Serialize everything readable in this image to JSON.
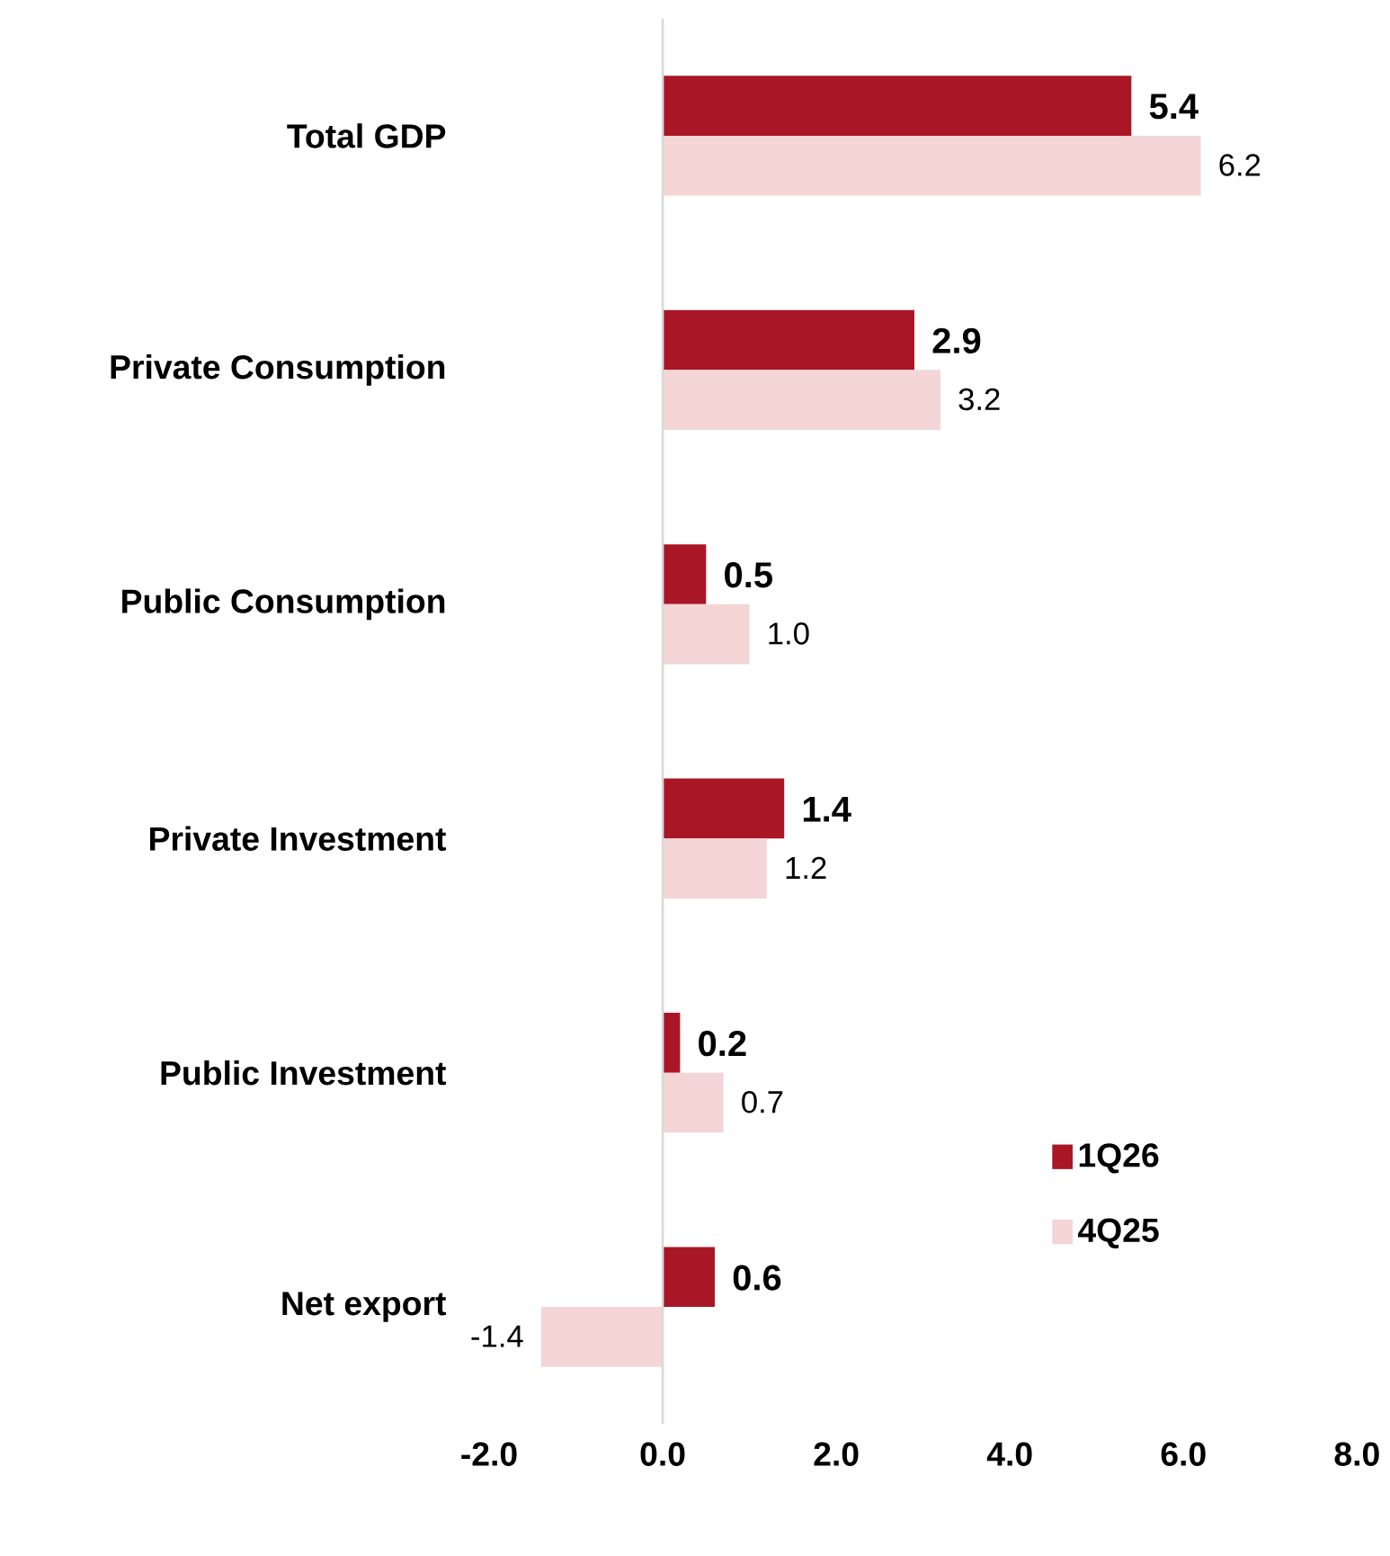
{
  "chart_data": {
    "type": "bar",
    "orientation": "horizontal",
    "categories": [
      "Total GDP",
      "Private Consumption",
      "Public Consumption",
      "Private Investment",
      "Public Investment",
      "Net export"
    ],
    "series": [
      {
        "name": "1Q26",
        "color": "#a91626",
        "values": [
          5.4,
          2.9,
          0.5,
          1.4,
          0.2,
          0.6
        ],
        "value_labels": [
          "5.4",
          "2.9",
          "0.5",
          "1.4",
          "0.2",
          "0.6"
        ]
      },
      {
        "name": "4Q25",
        "color": "#f4d5d6",
        "values": [
          6.2,
          3.2,
          1.0,
          1.2,
          0.7,
          -1.4
        ],
        "value_labels": [
          "6.2",
          "3.2",
          "1.0",
          "1.2",
          "0.7",
          "-1.4"
        ]
      }
    ],
    "xlim": [
      -2,
      8
    ],
    "xticks": [
      {
        "value": -2,
        "label": "-2.0"
      },
      {
        "value": 0,
        "label": "0.0"
      },
      {
        "value": 2,
        "label": "2.0"
      },
      {
        "value": 4,
        "label": "4.0"
      },
      {
        "value": 6,
        "label": "6.0"
      },
      {
        "value": 8,
        "label": "8.0"
      }
    ],
    "ref_lines": [
      {
        "axis": "x",
        "value": 0,
        "color": "#d9d9d9"
      }
    ],
    "grid": false,
    "legend": "bottom right"
  }
}
